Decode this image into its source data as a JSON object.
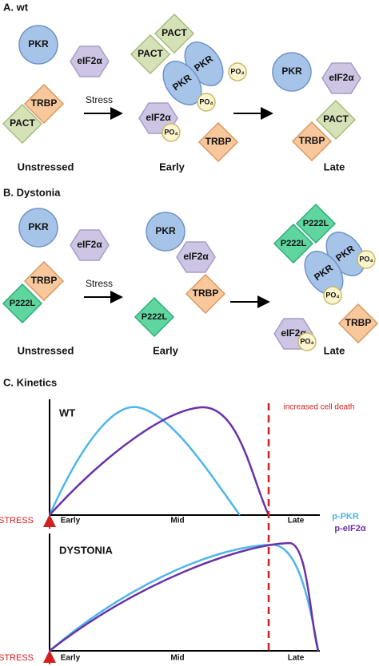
{
  "panel_a": {
    "title": "A. wt",
    "stress": "Stress",
    "stages": [
      "Unstressed",
      "Early",
      "Late"
    ],
    "unstressed": [
      "PKR",
      "eIF2α",
      "TRBP",
      "PACT"
    ],
    "early": [
      "PACT",
      "PACT",
      "PKR",
      "PKR",
      "PO₄",
      "PO₄",
      "eIF2α",
      "PO₄",
      "TRBP"
    ],
    "late": [
      "PKR",
      "eIF2α",
      "PACT",
      "TRBP"
    ]
  },
  "panel_b": {
    "title": "B. Dystonia",
    "stress": "Stress",
    "stages": [
      "Unstressed",
      "Early",
      "Late"
    ],
    "unstressed": [
      "PKR",
      "eIF2α",
      "TRBP",
      "P222L"
    ],
    "early": [
      "PKR",
      "eIF2α",
      "TRBP",
      "P222L"
    ],
    "late": [
      "P222L",
      "P222L",
      "PKR",
      "PKR",
      "PO₄",
      "PO₄",
      "eIF2α",
      "PO₄",
      "TRBP"
    ]
  },
  "panel_c": {
    "title": "C. Kinetics",
    "annotation": "increased cell death",
    "legend": [
      "p-PKR",
      "p-eIF2α"
    ],
    "charts": [
      {
        "label": "WT",
        "stress": "STRESS",
        "x_labels": [
          "Early",
          "Mid",
          "Late"
        ]
      },
      {
        "label": "DYSTONIA",
        "stress": "STRESS",
        "x_labels": [
          "Early",
          "Mid",
          "Late"
        ]
      }
    ]
  }
}
